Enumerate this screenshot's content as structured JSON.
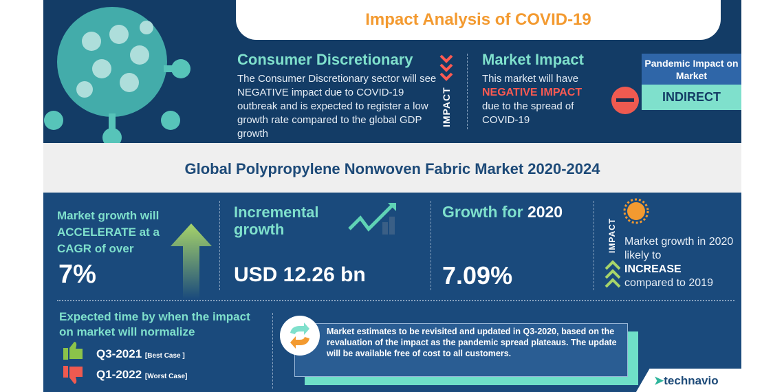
{
  "header": {
    "title": "Impact Analysis of COVID-19"
  },
  "consumer": {
    "heading": "Consumer Discretionary",
    "text": "The Consumer Discretionary sector will see NEGATIVE impact due to COVID-19 outbreak and is expected to register a low growth rate compared to the global GDP growth",
    "impact_label": "IMPACT"
  },
  "market_impact": {
    "heading": "Market Impact",
    "line1": "This market will have",
    "negative": "NEGATIVE IMPACT",
    "line2": "due to the spread of COVID-19"
  },
  "pandemic": {
    "label": "Pandemic Impact on Market",
    "value": "INDIRECT"
  },
  "market_title": "Global Polypropylene Nonwoven Fabric Market 2020-2024",
  "cagr": {
    "text": "Market growth will ACCELERATE at a CAGR of over",
    "value": "7%"
  },
  "incremental": {
    "label": "Incremental growth",
    "value": "USD 12.26 bn"
  },
  "growth2020": {
    "label": "Growth for ",
    "year": "2020",
    "value": "7.09%"
  },
  "impact2020": {
    "impact_label": "IMPACT",
    "line1": "Market growth in 2020 likely to",
    "increase": "INCREASE",
    "line2": "compared to 2019"
  },
  "normalize": {
    "heading": "Expected time by when the impact on market will normalize",
    "best": {
      "value": "Q3-2021",
      "note": "[Best Case ]"
    },
    "worst": {
      "value": "Q1-2022",
      "note": "[Worst Case]"
    }
  },
  "note": "Market estimates to be revisited and updated in Q3-2020, based on the revaluation of the impact as the pandemic spread plateaus. The update will be available free of cost to all customers.",
  "brand": "technavio",
  "colors": {
    "navy": "#133c66",
    "blue": "#1a4a7c",
    "teal": "#7fe0cc",
    "orange": "#f39a30",
    "red": "#ff5a52",
    "green": "#8bc34a"
  }
}
